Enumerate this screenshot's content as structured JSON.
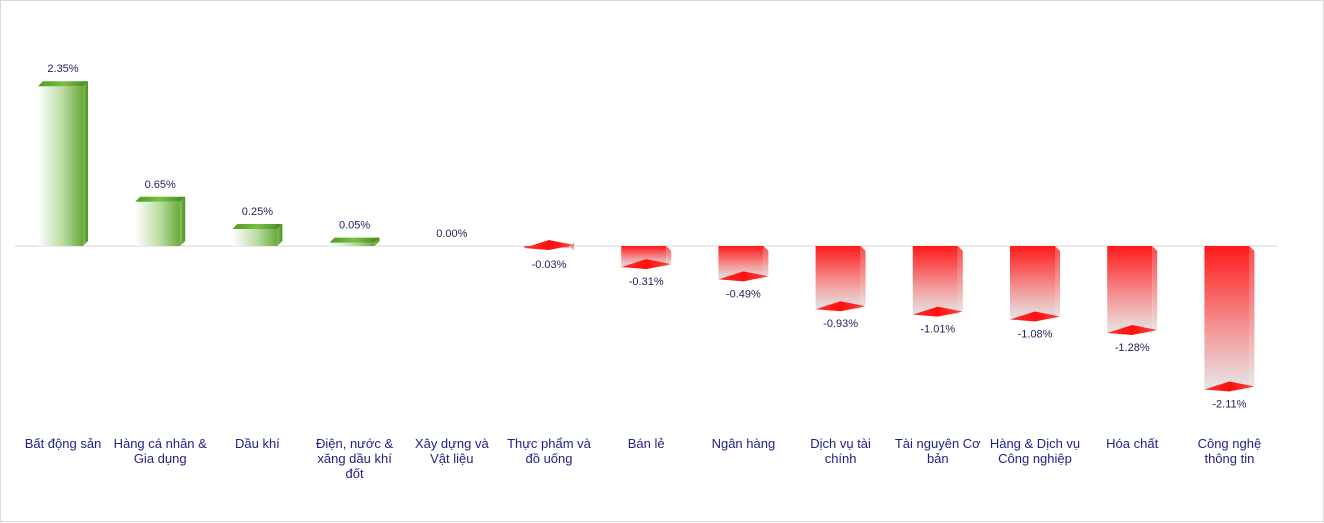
{
  "chart_data": {
    "type": "bar",
    "categories": [
      "Bất động sản",
      "Hàng cá nhân & Gia dụng",
      "Dầu khí",
      "Điện, nước & xăng dầu khí đốt",
      "Xây dựng và Vật liệu",
      "Thực phẩm và đồ uống",
      "Bán lẻ",
      "Ngân hàng",
      "Dịch vụ tài chính",
      "Tài nguyên Cơ bản",
      "Hàng & Dịch vụ Công nghiệp",
      "Hóa chất",
      "Công nghệ thông tin"
    ],
    "values": [
      2.35,
      0.65,
      0.25,
      0.05,
      0.0,
      -0.03,
      -0.31,
      -0.49,
      -0.93,
      -1.01,
      -1.08,
      -1.28,
      -2.11
    ],
    "data_labels": [
      "2.35%",
      "0.65%",
      "0.25%",
      "0.05%",
      "0.00%",
      "-0.03%",
      "-0.31%",
      "-0.49%",
      "-0.93%",
      "-1.01%",
      "-1.08%",
      "-1.28%",
      "-2.11%"
    ],
    "category_lines": [
      [
        "Bất động sản"
      ],
      [
        "Hàng cá nhân &",
        "Gia dụng"
      ],
      [
        "Dầu khí"
      ],
      [
        "Điện, nước &",
        "xăng dầu khí",
        "đốt"
      ],
      [
        "Xây dựng và",
        "Vật liệu"
      ],
      [
        "Thực phẩm và",
        "đồ uống"
      ],
      [
        "Bán lẻ"
      ],
      [
        "Ngân hàng"
      ],
      [
        "Dịch vụ tài",
        "chính"
      ],
      [
        "Tài nguyên Cơ",
        "bản"
      ],
      [
        "Hàng & Dịch vụ",
        "Công nghiệp"
      ],
      [
        "Hóa chất"
      ],
      [
        "Công nghệ",
        "thông tin"
      ]
    ],
    "unit": "%",
    "title": "",
    "xlabel": "",
    "ylabel": "",
    "grid": false,
    "legend": "none",
    "colors": {
      "positive_dark": "#5a9e2f",
      "positive_light": "#eef6e6",
      "negative_dark": "#ff2a2a",
      "negative_light": "#eeeeee",
      "text": "#1f1f8a"
    }
  }
}
